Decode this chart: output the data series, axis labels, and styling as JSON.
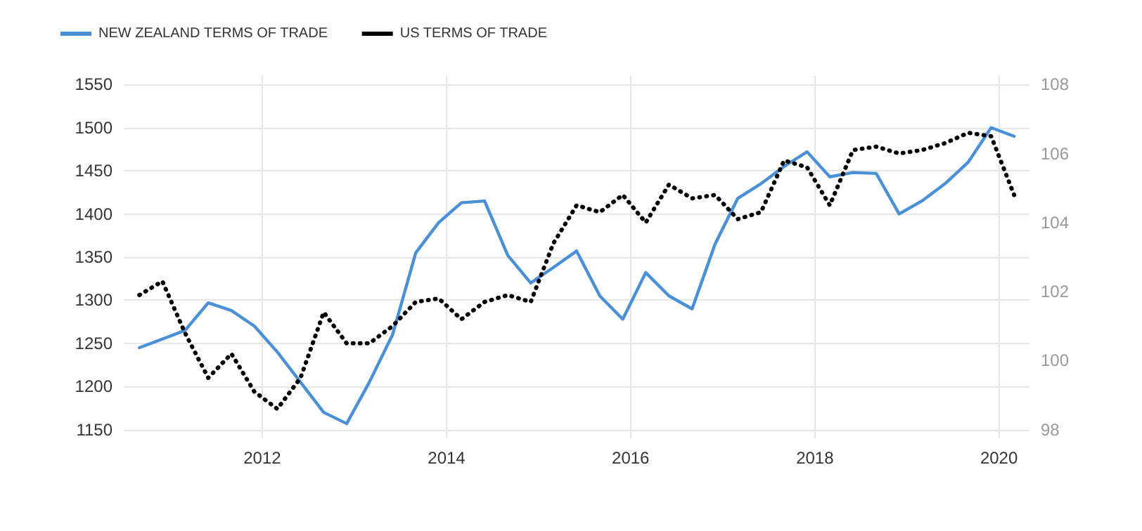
{
  "chart_data": {
    "type": "line",
    "x": [
      "2010-09",
      "2010-12",
      "2011-03",
      "2011-06",
      "2011-09",
      "2011-12",
      "2012-03",
      "2012-06",
      "2012-09",
      "2012-12",
      "2013-03",
      "2013-06",
      "2013-09",
      "2013-12",
      "2014-03",
      "2014-06",
      "2014-09",
      "2014-12",
      "2015-03",
      "2015-06",
      "2015-09",
      "2015-12",
      "2016-03",
      "2016-06",
      "2016-09",
      "2016-12",
      "2017-03",
      "2017-06",
      "2017-09",
      "2017-12",
      "2018-03",
      "2018-06",
      "2018-09",
      "2018-12",
      "2019-03",
      "2019-06",
      "2019-09",
      "2019-12",
      "2020-03"
    ],
    "series": [
      {
        "name": "NEW ZEALAND TERMS OF TRADE",
        "color": "#4a90d9",
        "line_style": "solid",
        "values": [
          1245,
          1255,
          1265,
          1297,
          1288,
          1270,
          1240,
          1205,
          1170,
          1157,
          1205,
          1260,
          1355,
          1390,
          1413,
          1415,
          1352,
          1320,
          1338,
          1357,
          1305,
          1278,
          1332,
          1305,
          1290,
          1365,
          1418,
          1435,
          1455,
          1472,
          1443,
          1448,
          1447,
          1400,
          1415,
          1435,
          1460,
          1500,
          1490
        ]
      },
      {
        "name": "US TERMS OF TRADE",
        "color": "#000000",
        "line_style": "dotted",
        "axis": "y2",
        "values": [
          101.9,
          102.3,
          100.8,
          99.5,
          100.2,
          99.1,
          98.6,
          99.5,
          101.4,
          100.5,
          100.5,
          101.0,
          101.7,
          101.8,
          101.2,
          101.7,
          101.9,
          101.7,
          103.4,
          104.5,
          104.3,
          104.8,
          104.0,
          105.1,
          104.7,
          104.8,
          104.1,
          104.3,
          105.8,
          105.6,
          104.5,
          106.1,
          106.2,
          106.0,
          106.1,
          106.3,
          106.6,
          106.5,
          104.8
        ]
      }
    ],
    "xlim": [
      "2010-07",
      "2020-05"
    ],
    "xticks": [
      "2012",
      "2014",
      "2016",
      "2018",
      "2020"
    ],
    "ylim": [
      1140,
      1560
    ],
    "yticks": [
      1150,
      1200,
      1250,
      1300,
      1350,
      1400,
      1450,
      1500,
      1550
    ],
    "y2lim": [
      97.75,
      108.25
    ],
    "y2ticks": [
      98,
      100,
      102,
      104,
      106,
      108
    ],
    "grid": true,
    "legend": "top left",
    "marker": "none"
  }
}
